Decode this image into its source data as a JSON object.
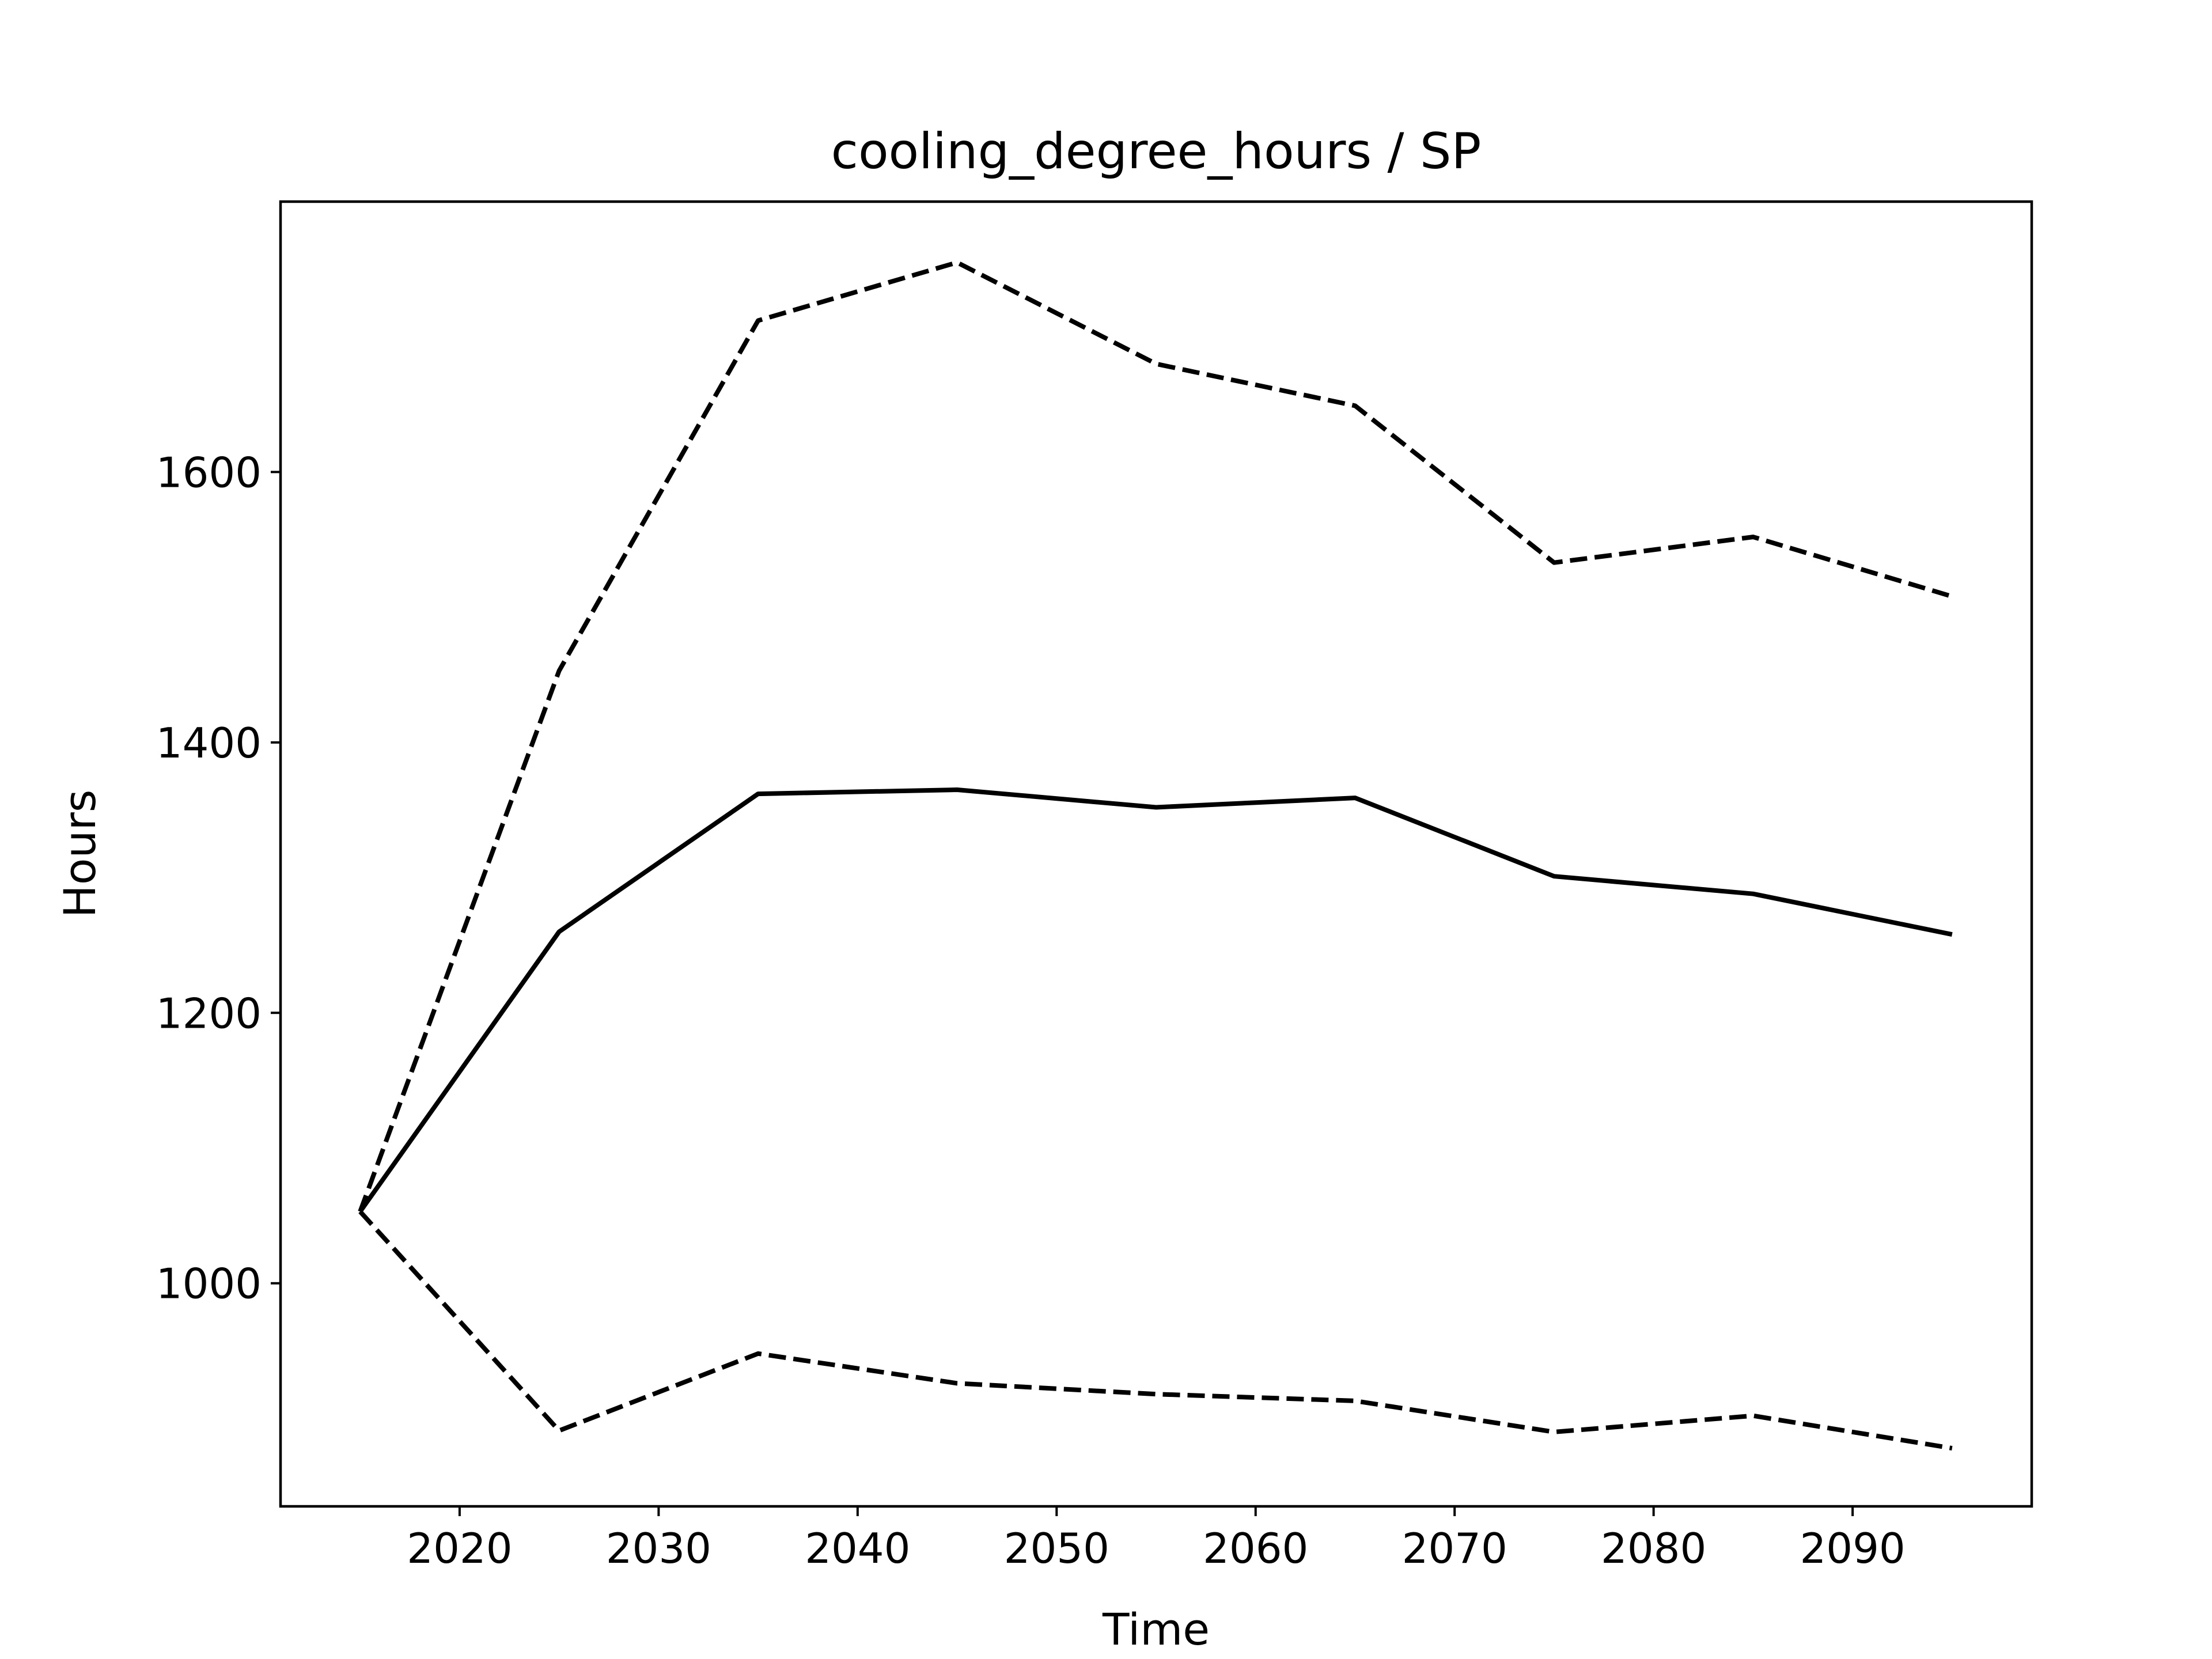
{
  "chart_data": {
    "type": "line",
    "title": "cooling_degree_hours / SP",
    "xlabel": "Time",
    "ylabel": "Hours",
    "xlim": [
      2011,
      2099
    ],
    "ylim": [
      835,
      1800
    ],
    "xticks": [
      2020,
      2030,
      2040,
      2050,
      2060,
      2070,
      2080,
      2090
    ],
    "yticks": [
      1000,
      1200,
      1400,
      1600
    ],
    "grid": false,
    "x": [
      2015,
      2025,
      2035,
      2045,
      2055,
      2065,
      2075,
      2085,
      2095
    ],
    "series": [
      {
        "style": "solid",
        "values": [
          1053,
          1260,
          1362,
          1365,
          1352,
          1359,
          1301,
          1288,
          1258
        ]
      },
      {
        "style": "dashed",
        "values": [
          1053,
          1453,
          1712,
          1755,
          1680,
          1649,
          1533,
          1552,
          1508
        ]
      },
      {
        "style": "dashed",
        "values": [
          1053,
          891,
          948,
          926,
          918,
          913,
          890,
          902,
          878
        ]
      }
    ],
    "colors": {
      "line": "#000000",
      "frame": "#000000",
      "background": "#ffffff"
    }
  }
}
